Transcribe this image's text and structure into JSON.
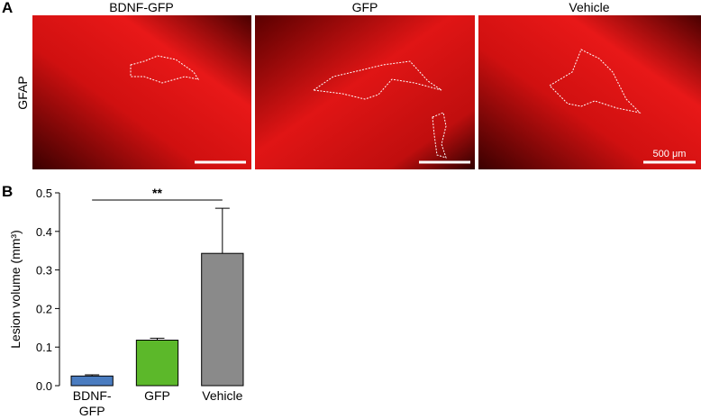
{
  "panel_a": {
    "label": "A",
    "titles": [
      "BDNF-GFP",
      "GFP",
      "Vehicle"
    ],
    "stain": "GFAP",
    "scale_bar": "500 μm"
  },
  "panel_b": {
    "label": "B"
  },
  "chart_data": {
    "type": "bar",
    "y_label": "Lesion volume (mm³)",
    "categories": [
      "BDNF-GFP",
      "GFP",
      "Vehicle"
    ],
    "values": [
      0.025,
      0.118,
      0.343
    ],
    "errors": [
      0.003,
      0.005,
      0.117
    ],
    "colors": [
      "#4a7cc0",
      "#5cb82a",
      "#8a8a8a"
    ],
    "ylim": [
      0,
      0.5
    ],
    "yticks": [
      {
        "value": 0,
        "label": "0.0"
      },
      0.1,
      0.2,
      0.3,
      0.4,
      0.5
    ],
    "significance": "**"
  }
}
